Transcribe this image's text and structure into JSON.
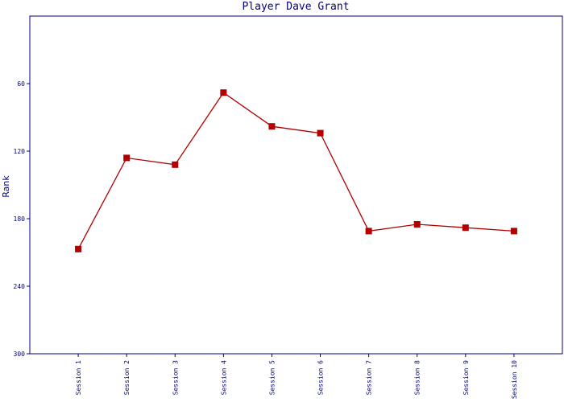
{
  "chart_data": {
    "type": "line",
    "title": "Player Dave Grant",
    "y_label": "Rank",
    "categories": [
      "Session 1",
      "Session 2",
      "Session 3",
      "Session 4",
      "Session 5",
      "Session 6",
      "Session 7",
      "Session 8",
      "Session 9",
      "Session 10"
    ],
    "series": [
      {
        "name": "Rank",
        "color": "#b00000",
        "values": [
          207,
          126,
          132,
          68,
          98,
          104,
          191,
          185,
          188,
          191
        ]
      }
    ],
    "ylim": [
      300,
      0
    ],
    "yticks": [
      60,
      120,
      180,
      240,
      300
    ]
  }
}
